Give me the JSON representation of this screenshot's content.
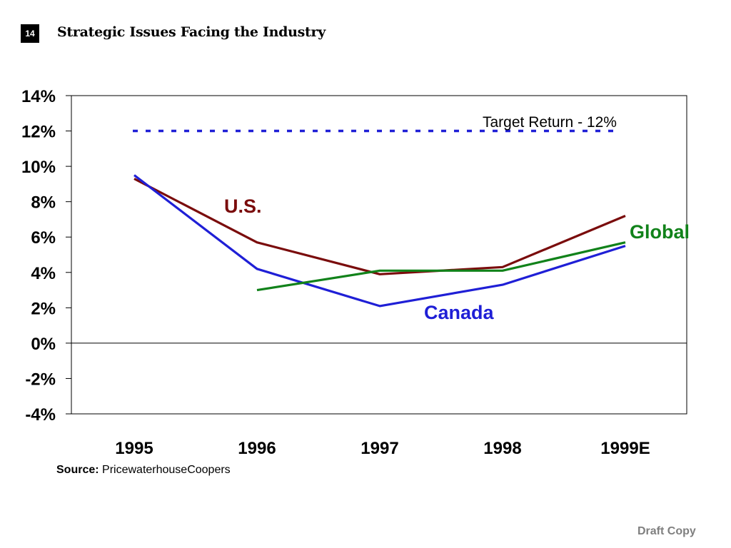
{
  "page": {
    "number": "14",
    "title": "Strategic Issues Facing the Industry",
    "source_label": "Source:",
    "source_text": "PricewaterhouseCoopers",
    "draft_label": "Draft Copy"
  },
  "chart_data": {
    "type": "line",
    "title": "",
    "xlabel": "",
    "ylabel": "",
    "categories": [
      "1995",
      "1996",
      "1997",
      "1998",
      "1999E"
    ],
    "ylim": [
      -4,
      14
    ],
    "yticks": [
      14,
      12,
      10,
      8,
      6,
      4,
      2,
      0,
      -2,
      -4
    ],
    "ytick_labels": [
      "14%",
      "12%",
      "10%",
      "8%",
      "6%",
      "4%",
      "2%",
      "0%",
      "-2%",
      "-4%"
    ],
    "grid": false,
    "series": [
      {
        "name": "U.S.",
        "color": "#7a0c0c",
        "values": [
          9.3,
          5.7,
          3.9,
          4.3,
          7.2
        ]
      },
      {
        "name": "Canada",
        "color": "#1f1fd6",
        "values": [
          9.5,
          4.2,
          2.1,
          3.3,
          5.5
        ]
      },
      {
        "name": "Global",
        "color": "#11821a",
        "values": [
          null,
          3.0,
          4.1,
          4.1,
          5.7
        ]
      }
    ],
    "reference_line": {
      "label": "Target Return - 12%",
      "value": 12,
      "color": "#1f1fd6",
      "style": "dotted"
    }
  }
}
